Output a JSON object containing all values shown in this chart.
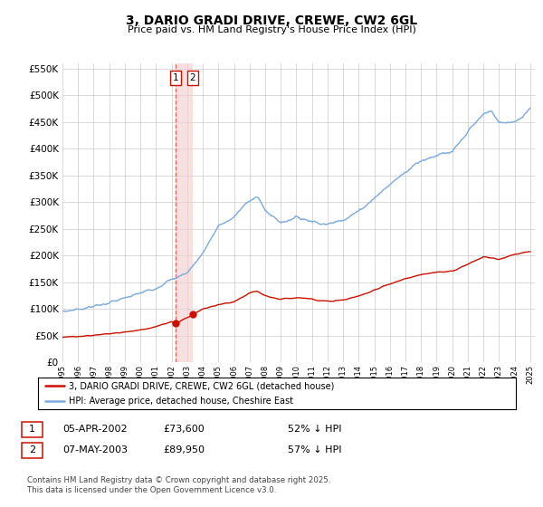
{
  "title": "3, DARIO GRADI DRIVE, CREWE, CW2 6GL",
  "subtitle": "Price paid vs. HM Land Registry's House Price Index (HPI)",
  "hpi_color": "#7aaadd",
  "price_color": "#cc1100",
  "vline_color": "#cc1100",
  "vshade_color": "#f5cccc",
  "marker_color": "#cc1100",
  "ylim": [
    0,
    560000
  ],
  "yticks": [
    0,
    50000,
    100000,
    150000,
    200000,
    250000,
    300000,
    350000,
    400000,
    450000,
    500000,
    550000
  ],
  "transaction1_date": 2002.27,
  "transaction1_price": 73600,
  "transaction1_label": "1",
  "transaction2_date": 2003.36,
  "transaction2_price": 89950,
  "transaction2_label": "2",
  "legend_line1": "3, DARIO GRADI DRIVE, CREWE, CW2 6GL (detached house)",
  "legend_line2": "HPI: Average price, detached house, Cheshire East",
  "table_row1": [
    "1",
    "05-APR-2002",
    "£73,600",
    "52% ↓ HPI"
  ],
  "table_row2": [
    "2",
    "07-MAY-2003",
    "£89,950",
    "57% ↓ HPI"
  ],
  "footnote": "Contains HM Land Registry data © Crown copyright and database right 2025.\nThis data is licensed under the Open Government Licence v3.0.",
  "background_color": "#ffffff",
  "grid_color": "#cccccc",
  "hpi_anchors_x": [
    1995,
    1996,
    1997,
    1998,
    1999,
    2000,
    2001,
    2002,
    2003,
    2004,
    2005,
    2006,
    2007,
    2007.5,
    2008,
    2009,
    2010,
    2011,
    2012,
    2013,
    2014,
    2015,
    2016,
    2017,
    2018,
    2019,
    2020,
    2021,
    2022,
    2022.5,
    2023,
    2024,
    2024.5,
    2025
  ],
  "hpi_anchors_y": [
    95000,
    100000,
    105000,
    112000,
    120000,
    130000,
    140000,
    155000,
    168000,
    205000,
    255000,
    272000,
    305000,
    310000,
    285000,
    262000,
    272000,
    265000,
    258000,
    268000,
    283000,
    308000,
    333000,
    358000,
    378000,
    388000,
    393000,
    432000,
    465000,
    472000,
    448000,
    452000,
    460000,
    478000
  ],
  "price_anchors_x": [
    1995,
    1996,
    1997,
    1998,
    1999,
    2000,
    2001,
    2002,
    2002.27,
    2003,
    2003.36,
    2004,
    2005,
    2006,
    2007,
    2007.5,
    2008,
    2009,
    2010,
    2011,
    2012,
    2013,
    2014,
    2015,
    2016,
    2017,
    2018,
    2019,
    2020,
    2021,
    2022,
    2023,
    2024,
    2025
  ],
  "price_anchors_y": [
    47000,
    49000,
    51000,
    54000,
    57000,
    61000,
    67000,
    76000,
    73600,
    84000,
    89950,
    100000,
    108000,
    113000,
    130000,
    133000,
    125000,
    118000,
    122000,
    119000,
    114000,
    117000,
    124000,
    136000,
    147000,
    157000,
    164000,
    169000,
    171000,
    184000,
    198000,
    193000,
    203000,
    208000
  ]
}
